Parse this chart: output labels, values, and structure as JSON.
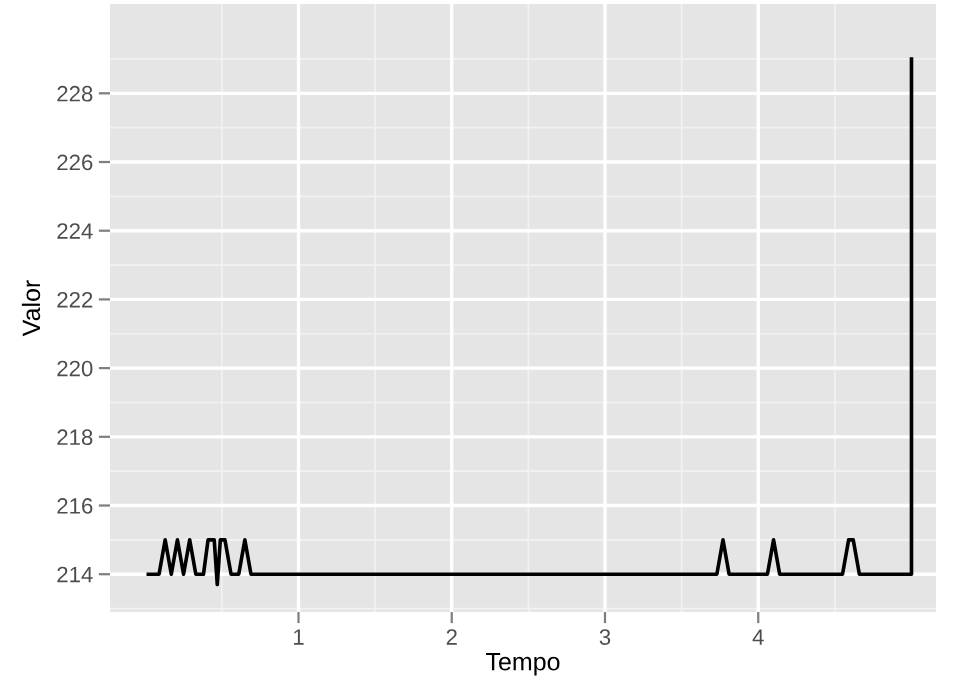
{
  "chart_data": {
    "type": "line",
    "xlabel": "Tempo",
    "ylabel": "Valor",
    "series": [
      {
        "color": "#000000",
        "x": [
          0.02,
          0.09,
          0.13,
          0.17,
          0.21,
          0.25,
          0.29,
          0.33,
          0.38,
          0.41,
          0.45,
          0.47,
          0.49,
          0.52,
          0.56,
          0.61,
          0.65,
          0.69,
          3.73,
          3.77,
          3.81,
          4.06,
          4.1,
          4.14,
          4.55,
          4.59,
          4.62,
          4.66,
          5.0,
          5.0
        ],
        "values": [
          214,
          214,
          215,
          214,
          215,
          214,
          215,
          214,
          214,
          215,
          215,
          213.7,
          215,
          215,
          214,
          214,
          215,
          214,
          214,
          215,
          214,
          214,
          215,
          214,
          214,
          215,
          215,
          214,
          214,
          229
        ]
      }
    ],
    "xlim": [
      -0.23,
      5.16
    ],
    "ylim": [
      212.9,
      230.6
    ],
    "xticks": [
      1,
      2,
      3,
      4
    ],
    "yticks": [
      214,
      216,
      218,
      220,
      222,
      224,
      226,
      228
    ],
    "grid": true,
    "marker": "none",
    "line_style": "solid"
  }
}
